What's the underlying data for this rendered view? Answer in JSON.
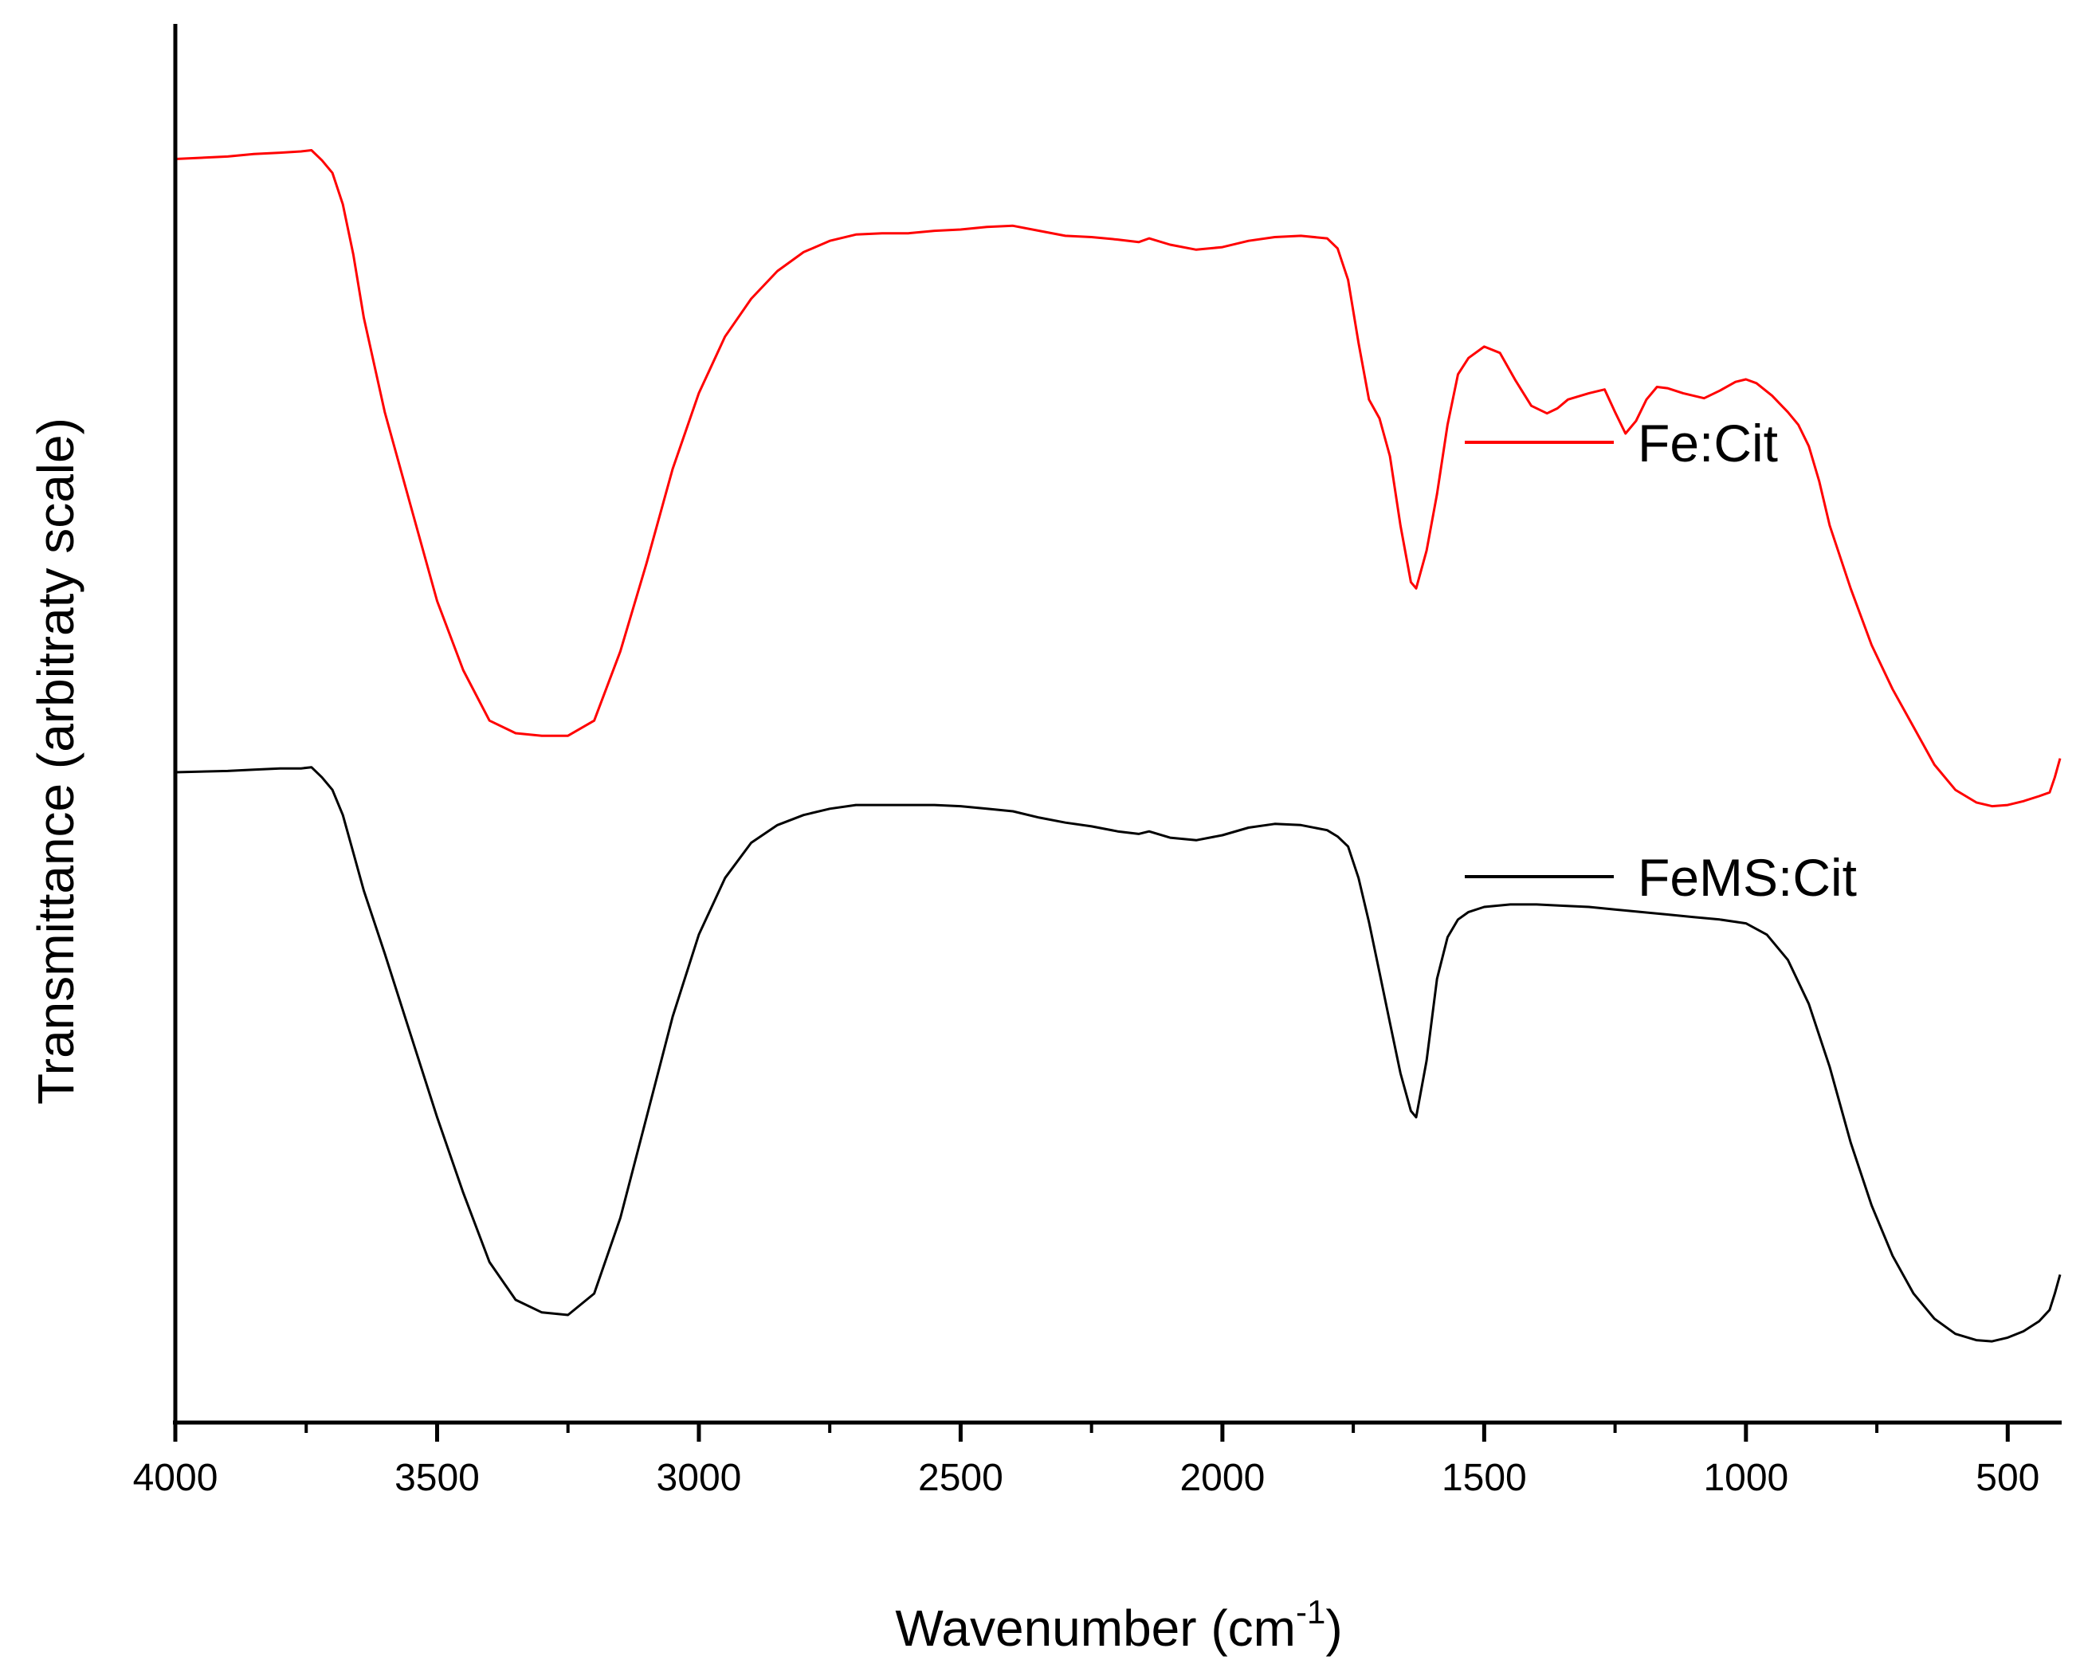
{
  "chart_data": {
    "type": "line",
    "title": "",
    "xlabel": "Wavenumber (cm",
    "xlabel_sup": "-1",
    "xlabel_close": ")",
    "ylabel": "Transmittance (arbitraty scale)",
    "xlim": [
      4000,
      400
    ],
    "x_reversed": true,
    "y_ticks_shown": false,
    "grid": false,
    "legend_position": "right",
    "x_ticks": [
      "4000",
      "3500",
      "3000",
      "2500",
      "2000",
      "1500",
      "1000",
      "500"
    ],
    "x_tick_values": [
      4000,
      3500,
      3000,
      2500,
      2000,
      1500,
      1000,
      500
    ],
    "x_minor_tick_values": [
      3750,
      3250,
      2750,
      2250,
      1750,
      1250,
      750
    ],
    "ylim": [
      0,
      100
    ],
    "series": [
      {
        "name": "Fe:Cit",
        "color": "#ff0000",
        "x": [
          4000,
          3900,
          3850,
          3800,
          3760,
          3740,
          3720,
          3700,
          3680,
          3660,
          3640,
          3600,
          3550,
          3500,
          3450,
          3400,
          3350,
          3300,
          3250,
          3200,
          3150,
          3100,
          3050,
          3000,
          2950,
          2900,
          2850,
          2800,
          2750,
          2700,
          2650,
          2600,
          2550,
          2500,
          2450,
          2400,
          2350,
          2300,
          2250,
          2200,
          2160,
          2140,
          2100,
          2050,
          2000,
          1950,
          1900,
          1850,
          1800,
          1780,
          1760,
          1740,
          1720,
          1700,
          1680,
          1660,
          1640,
          1630,
          1610,
          1590,
          1570,
          1550,
          1530,
          1500,
          1470,
          1440,
          1410,
          1380,
          1360,
          1340,
          1300,
          1270,
          1250,
          1230,
          1210,
          1190,
          1170,
          1150,
          1120,
          1080,
          1050,
          1020,
          1000,
          980,
          950,
          920,
          900,
          880,
          860,
          840,
          800,
          760,
          720,
          680,
          640,
          600,
          560,
          530,
          500,
          470,
          440,
          420,
          410,
          400
        ],
        "y": [
          95.6,
          95.8,
          96.0,
          96.1,
          96.2,
          96.3,
          95.5,
          94.5,
          92.0,
          88.0,
          83.0,
          75.5,
          68.0,
          60.5,
          55.0,
          51.0,
          50.0,
          49.8,
          49.8,
          51.0,
          56.5,
          63.5,
          71.0,
          77.0,
          81.5,
          84.5,
          86.7,
          88.2,
          89.1,
          89.6,
          89.7,
          89.7,
          89.9,
          90.0,
          90.2,
          90.3,
          89.9,
          89.5,
          89.4,
          89.2,
          89.0,
          89.3,
          88.8,
          88.4,
          88.6,
          89.1,
          89.4,
          89.5,
          89.3,
          88.5,
          86.0,
          81.0,
          76.5,
          75.0,
          72.0,
          66.5,
          62.0,
          61.5,
          64.5,
          69.0,
          74.5,
          78.5,
          79.8,
          80.7,
          80.2,
          78.0,
          76.0,
          75.4,
          75.8,
          76.5,
          77.0,
          77.3,
          75.5,
          73.8,
          74.8,
          76.5,
          77.5,
          77.4,
          77.0,
          76.6,
          77.2,
          77.9,
          78.1,
          77.8,
          76.8,
          75.5,
          74.5,
          72.8,
          70.0,
          66.5,
          61.5,
          57.0,
          53.5,
          50.5,
          47.5,
          45.5,
          44.5,
          44.2,
          44.3,
          44.6,
          45.0,
          45.3,
          46.5,
          48.0
        ]
      },
      {
        "name": "FeMS:Cit",
        "color": "#000000",
        "x": [
          4000,
          3900,
          3850,
          3800,
          3760,
          3740,
          3720,
          3700,
          3680,
          3660,
          3640,
          3600,
          3550,
          3500,
          3450,
          3400,
          3350,
          3300,
          3250,
          3200,
          3150,
          3100,
          3050,
          3000,
          2950,
          2900,
          2850,
          2800,
          2750,
          2700,
          2650,
          2600,
          2550,
          2500,
          2450,
          2400,
          2350,
          2300,
          2250,
          2200,
          2160,
          2140,
          2100,
          2050,
          2000,
          1950,
          1900,
          1850,
          1800,
          1780,
          1760,
          1740,
          1720,
          1700,
          1680,
          1660,
          1640,
          1630,
          1610,
          1590,
          1570,
          1550,
          1530,
          1500,
          1450,
          1400,
          1350,
          1300,
          1250,
          1200,
          1150,
          1100,
          1050,
          1000,
          960,
          920,
          880,
          840,
          800,
          760,
          720,
          680,
          640,
          600,
          560,
          530,
          500,
          470,
          440,
          420,
          410,
          400
        ],
        "y": [
          46.9,
          47.0,
          47.1,
          47.2,
          47.2,
          47.3,
          46.5,
          45.5,
          43.5,
          40.5,
          37.5,
          32.5,
          26.0,
          19.5,
          13.5,
          8.0,
          5.0,
          4.0,
          3.8,
          5.5,
          11.5,
          19.5,
          27.5,
          34.0,
          38.5,
          41.3,
          42.7,
          43.5,
          44.0,
          44.3,
          44.3,
          44.3,
          44.3,
          44.2,
          44.0,
          43.8,
          43.3,
          42.9,
          42.6,
          42.2,
          42.0,
          42.2,
          41.7,
          41.5,
          41.9,
          42.5,
          42.8,
          42.7,
          42.3,
          41.8,
          41.0,
          38.5,
          35.0,
          31.0,
          27.0,
          23.0,
          20.0,
          19.5,
          24.0,
          30.5,
          33.8,
          35.2,
          35.8,
          36.2,
          36.4,
          36.4,
          36.3,
          36.2,
          36.0,
          35.8,
          35.6,
          35.4,
          35.2,
          34.9,
          34.0,
          32.0,
          28.5,
          23.5,
          17.5,
          12.5,
          8.5,
          5.5,
          3.5,
          2.3,
          1.8,
          1.7,
          2.0,
          2.5,
          3.3,
          4.2,
          5.5,
          7.0
        ]
      }
    ]
  }
}
